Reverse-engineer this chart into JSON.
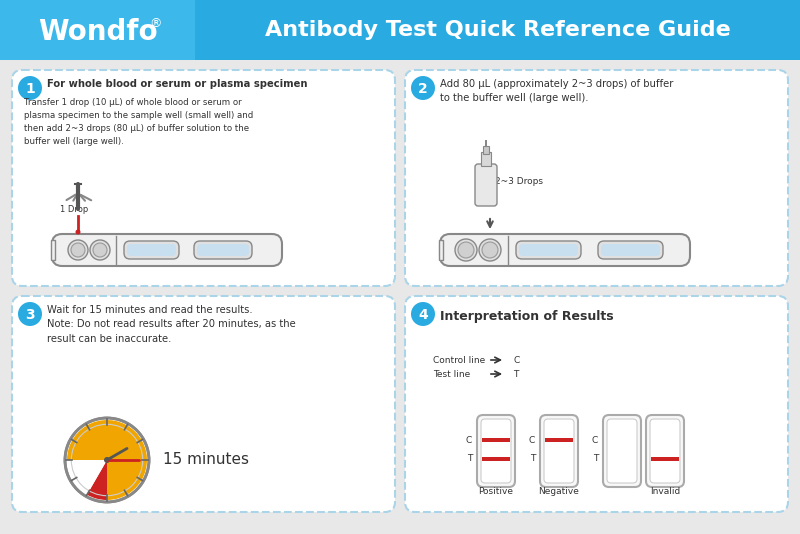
{
  "bg_color": "#e8e8e8",
  "header_color": "#29abe2",
  "header_title": "Antibody Test Quick Reference Guide",
  "header_logo": "Wondfo",
  "header_logo_superscript": "®",
  "card_bg": "#ffffff",
  "card_border": "#aad4e8",
  "step_circle_color": "#29abe2",
  "step1_title": "For whole blood or serum or plasma specimen",
  "step1_text": "Transfer 1 drop (10 μL) of whole blood or serum or\nplasma specimen to the sample well (small well) and\nthen add 2~3 drops (80 μL) of buffer solution to the\nbuffer well (large well).",
  "step1_label": "1 Drop",
  "step2_title": "Add 80 μL (approximately 2~3 drops) of buffer\nto the buffer well (large well).",
  "step2_label": "2~3 Drops",
  "step3_title": "Wait for 15 minutes and read the results.\nNote: Do not read results after 20 minutes, as the\nresult can be inaccurate.",
  "step3_time": "15 minutes",
  "step4_title": "Interpretation of Results",
  "step4_ctrl_label": "Control line",
  "step4_test_label": "Test line",
  "step4_positive": "Positive",
  "step4_negative": "Negative",
  "step4_invalid": "Invalid",
  "font_color": "#333333",
  "red_line": "#cc2222",
  "clock_yellow": "#f0a500",
  "clock_red": "#cc2222",
  "clock_gray": "#888888"
}
